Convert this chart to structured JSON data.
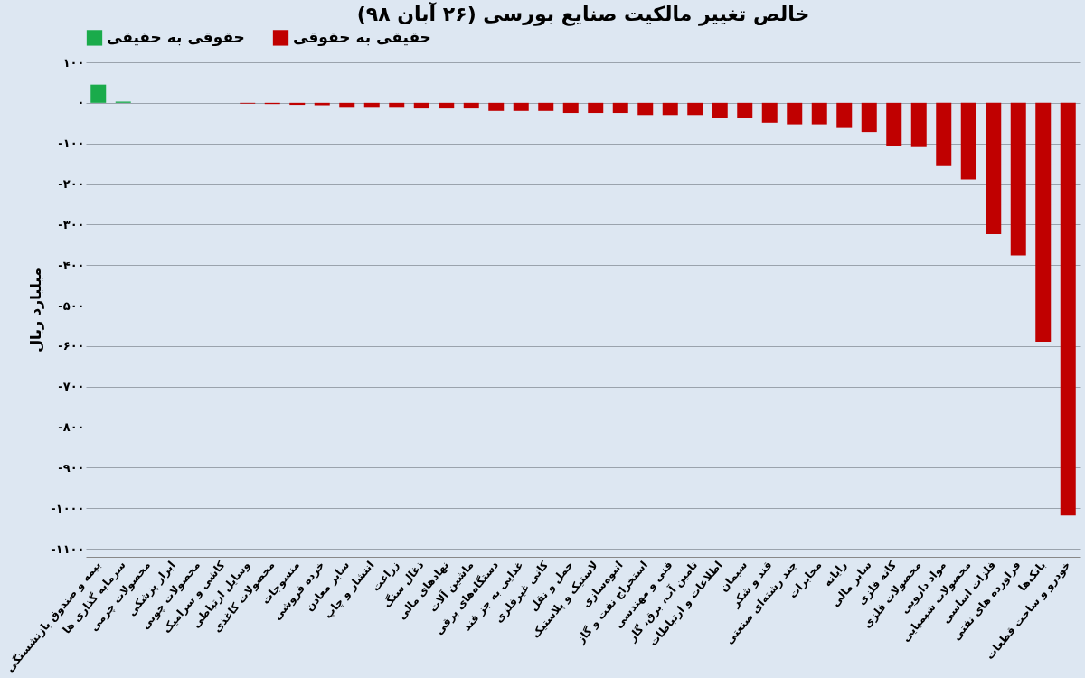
{
  "chart_data": {
    "type": "bar",
    "title": "خالص تغییر مالکیت صنایع بورسی (۲۶ آبان ۹۸)",
    "ylabel": "میلیارد ریال",
    "categories": [
      "بیمه و صندوق بازنشستگی",
      "سرمایه گذاری ها",
      "محصولات چرمی",
      "ابزار پزشکی",
      "محصولات چوبی",
      "کاشی و سرامیک",
      "وسایل ارتباطی",
      "محصولات کاغذی",
      "منسوجات",
      "خرده فروشی",
      "سایر معادن",
      "انتشار و چاپ",
      "زراعت",
      "ذغال سنگ",
      "نهادهای مالی",
      "ماشین آلات",
      "دستگاه‌های برقی",
      "غذایی به جز قند",
      "کانی غیرفلزی",
      "حمل و نقل",
      "لاستیک و پلاستیک",
      "انبوه‌سازی",
      "استخراج نفت و گاز",
      "فنی و مهندسی",
      "تامین آب، برق، گاز",
      "اطلاعات و ارتباطات",
      "سیمان",
      "قند و شکر",
      "چند رشته‌ای صنعتی",
      "مخابرات",
      "رایانه",
      "سایر مالی",
      "کانه فلزی",
      "محصولات فلزی",
      "مواد دارویی",
      "محصولات شیمیایی",
      "فلزات اساسی",
      "فراورده های نفتی",
      "بانک‌ها",
      "خودرو و ساخت قطعات"
    ],
    "series": [
      {
        "name": "حقوقی به حقیقی",
        "color": "#1aab4b",
        "values": [
          45,
          3,
          null,
          null,
          null,
          null,
          null,
          null,
          null,
          null,
          null,
          null,
          null,
          null,
          null,
          null,
          null,
          null,
          null,
          null,
          null,
          null,
          null,
          null,
          null,
          null,
          null,
          null,
          null,
          null,
          null,
          null,
          null,
          null,
          null,
          null,
          null,
          null,
          null,
          null
        ]
      },
      {
        "name": "حقیقی به حقوقی",
        "color": "#c00000",
        "values": [
          null,
          null,
          null,
          null,
          null,
          null,
          -2,
          -3,
          -5,
          -6,
          -10,
          -10,
          -10,
          -14,
          -14,
          -14,
          -20,
          -20,
          -20,
          -25,
          -25,
          -25,
          -30,
          -30,
          -30,
          -37,
          -37,
          -49,
          -53,
          -53,
          -62,
          -72,
          -107,
          -109,
          -156,
          -189,
          -324,
          -376,
          -589,
          -1018
        ]
      }
    ],
    "ylim": [
      -1120,
      100
    ],
    "yticks": [
      {
        "value": 100,
        "label": "۱۰۰"
      },
      {
        "value": 0,
        "label": "۰"
      },
      {
        "value": -100,
        "label": "-۱۰۰"
      },
      {
        "value": -200,
        "label": "-۲۰۰"
      },
      {
        "value": -300,
        "label": "-۳۰۰"
      },
      {
        "value": -400,
        "label": "-۴۰۰"
      },
      {
        "value": -500,
        "label": "-۵۰۰"
      },
      {
        "value": -600,
        "label": "-۶۰۰"
      },
      {
        "value": -700,
        "label": "-۷۰۰"
      },
      {
        "value": -800,
        "label": "-۸۰۰"
      },
      {
        "value": -900,
        "label": "-۹۰۰"
      },
      {
        "value": -1000,
        "label": "-۱۰۰۰"
      },
      {
        "value": -1100,
        "label": "-۱۱۰۰"
      }
    ],
    "grid": "y",
    "legend": "top"
  }
}
